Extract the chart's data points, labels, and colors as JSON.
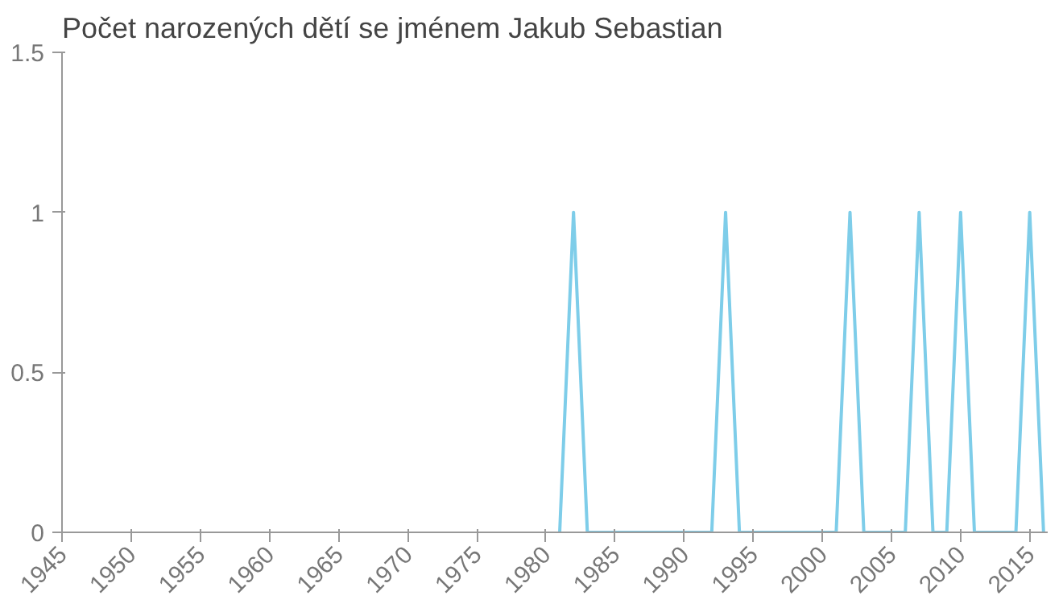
{
  "chart_data": {
    "type": "line",
    "title": "Počet narozených dětí se jménem Jakub Sebastian",
    "x": [
      1981,
      1982,
      1983,
      1984,
      1985,
      1986,
      1987,
      1988,
      1989,
      1990,
      1991,
      1992,
      1993,
      1994,
      1995,
      1996,
      1997,
      1998,
      1999,
      2000,
      2001,
      2002,
      2003,
      2004,
      2005,
      2006,
      2007,
      2008,
      2009,
      2010,
      2011,
      2012,
      2013,
      2014,
      2015,
      2016
    ],
    "series": [
      {
        "color": "#7ecde9",
        "values": [
          0,
          1,
          0,
          0,
          0,
          0,
          0,
          0,
          0,
          0,
          0,
          0,
          1,
          0,
          0,
          0,
          0,
          0,
          0,
          0,
          0,
          1,
          0,
          0,
          0,
          0,
          1,
          0,
          0,
          1,
          0,
          0,
          0,
          0,
          1,
          0
        ]
      }
    ],
    "xlim": [
      1945,
      2016.3
    ],
    "xticks": [
      1945,
      1950,
      1955,
      1960,
      1965,
      1970,
      1975,
      1980,
      1985,
      1990,
      1995,
      2000,
      2005,
      2010,
      2015
    ],
    "ylim": [
      0,
      1.5
    ],
    "yticks": [
      0,
      0.5,
      1,
      1.5
    ],
    "grid": false,
    "marker": "none",
    "line_style": "solid"
  }
}
